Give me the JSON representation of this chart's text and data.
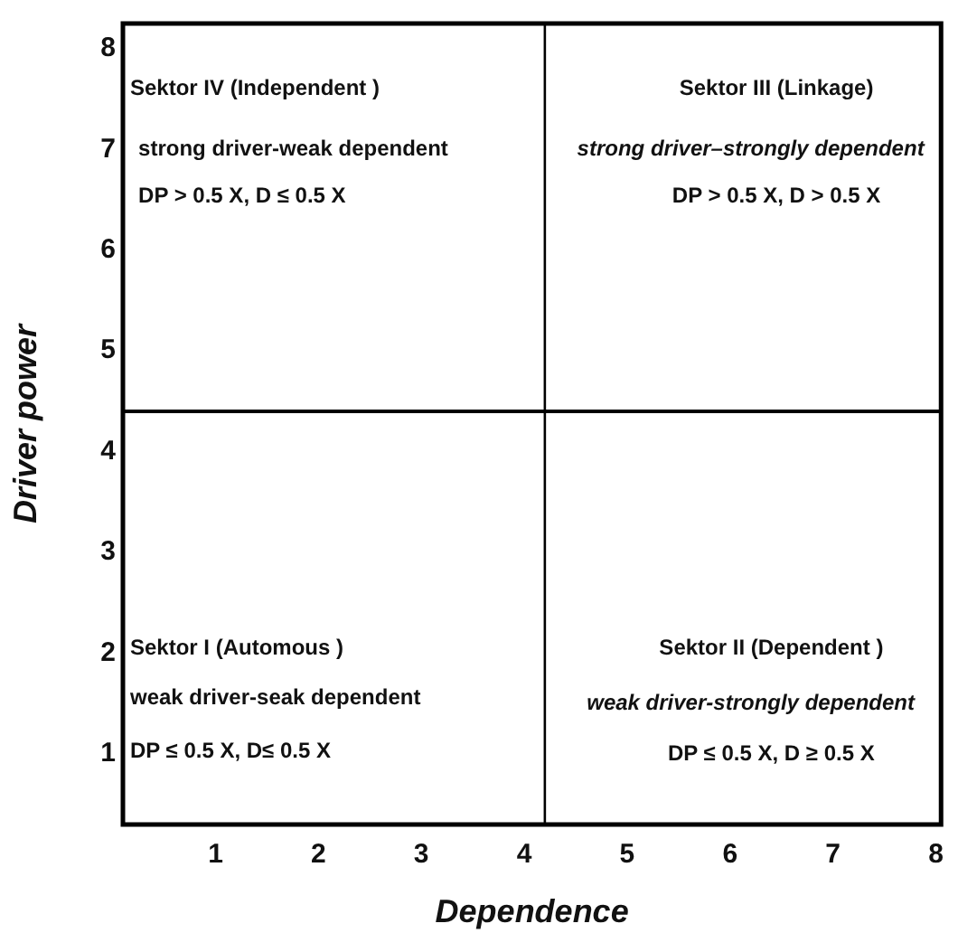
{
  "chart_data": {
    "type": "scatter",
    "xlabel": "Dependence",
    "ylabel": "Driver power",
    "xlim": [
      0.1,
      8.05
    ],
    "xticks": [
      1,
      2,
      3,
      4,
      5,
      6,
      7,
      8
    ],
    "ylim": [
      0.3,
      8.25
    ],
    "yticks": [
      1,
      2,
      3,
      4,
      5,
      6,
      7,
      8
    ],
    "grid": false,
    "legend": false,
    "ref_lines": [
      {
        "axis": "x",
        "value": 4.2,
        "color": "#000000"
      },
      {
        "axis": "y",
        "value": 4.4,
        "color": "#000000"
      }
    ],
    "annotations": [
      "Sektor IV (Independent )",
      "strong driver-weak dependent",
      "DP > 0.5 X, D ≤ 0.5 X",
      "Sektor III (Linkage)",
      "strong driver–strongly dependent",
      "DP > 0.5 X, D > 0.5 X",
      "Sektor I (Automous )",
      "weak driver-seak dependent",
      "DP ≤ 0.5 X, D≤ 0.5 X",
      "Sektor II (Dependent )",
      "weak driver-strongly dependent",
      "DP ≤ 0.5 X, D ≥ 0.5 X"
    ]
  }
}
